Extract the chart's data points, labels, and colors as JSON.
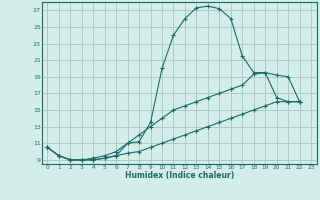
{
  "xlabel": "Humidex (Indice chaleur)",
  "bg_color": "#d4ede8",
  "grid_color": "#a8ccc6",
  "line_color": "#1a6b6b",
  "xlim": [
    -0.5,
    23.5
  ],
  "ylim": [
    8.5,
    28.0
  ],
  "xtick_vals": [
    0,
    1,
    2,
    3,
    4,
    5,
    6,
    7,
    8,
    9,
    10,
    11,
    12,
    13,
    14,
    15,
    16,
    17,
    18,
    19,
    20,
    21,
    22,
    23
  ],
  "ytick_vals": [
    9,
    11,
    13,
    15,
    17,
    19,
    21,
    23,
    25,
    27
  ],
  "series1_x": [
    0,
    1,
    2,
    3,
    4,
    5,
    6,
    7,
    8,
    9,
    10,
    11,
    12,
    13,
    14,
    15,
    16,
    17,
    18,
    19,
    20,
    21,
    22
  ],
  "series1_y": [
    10.5,
    9.5,
    9.0,
    9.0,
    9.0,
    9.2,
    9.5,
    11.0,
    11.2,
    13.5,
    20.0,
    24.0,
    26.0,
    27.3,
    27.5,
    27.2,
    26.0,
    21.5,
    19.5,
    19.5,
    19.2,
    19.0,
    16.0
  ],
  "series2_x": [
    0,
    1,
    2,
    3,
    4,
    5,
    6,
    7,
    8,
    9,
    10,
    11,
    12,
    13,
    14,
    15,
    16,
    17,
    18,
    19,
    20,
    21,
    22
  ],
  "series2_y": [
    10.5,
    9.5,
    9.0,
    9.0,
    9.2,
    9.5,
    10.0,
    11.0,
    12.0,
    13.0,
    14.0,
    15.0,
    15.5,
    16.0,
    16.5,
    17.0,
    17.5,
    18.0,
    19.3,
    19.5,
    16.5,
    16.0,
    16.0
  ],
  "series3_x": [
    0,
    1,
    2,
    3,
    4,
    5,
    6,
    7,
    8,
    9,
    10,
    11,
    12,
    13,
    14,
    15,
    16,
    17,
    18,
    19,
    20,
    21,
    22
  ],
  "series3_y": [
    10.5,
    9.5,
    9.0,
    9.0,
    9.0,
    9.2,
    9.5,
    9.8,
    10.0,
    10.5,
    11.0,
    11.5,
    12.0,
    12.5,
    13.0,
    13.5,
    14.0,
    14.5,
    15.0,
    15.5,
    16.0,
    16.0,
    16.0
  ]
}
